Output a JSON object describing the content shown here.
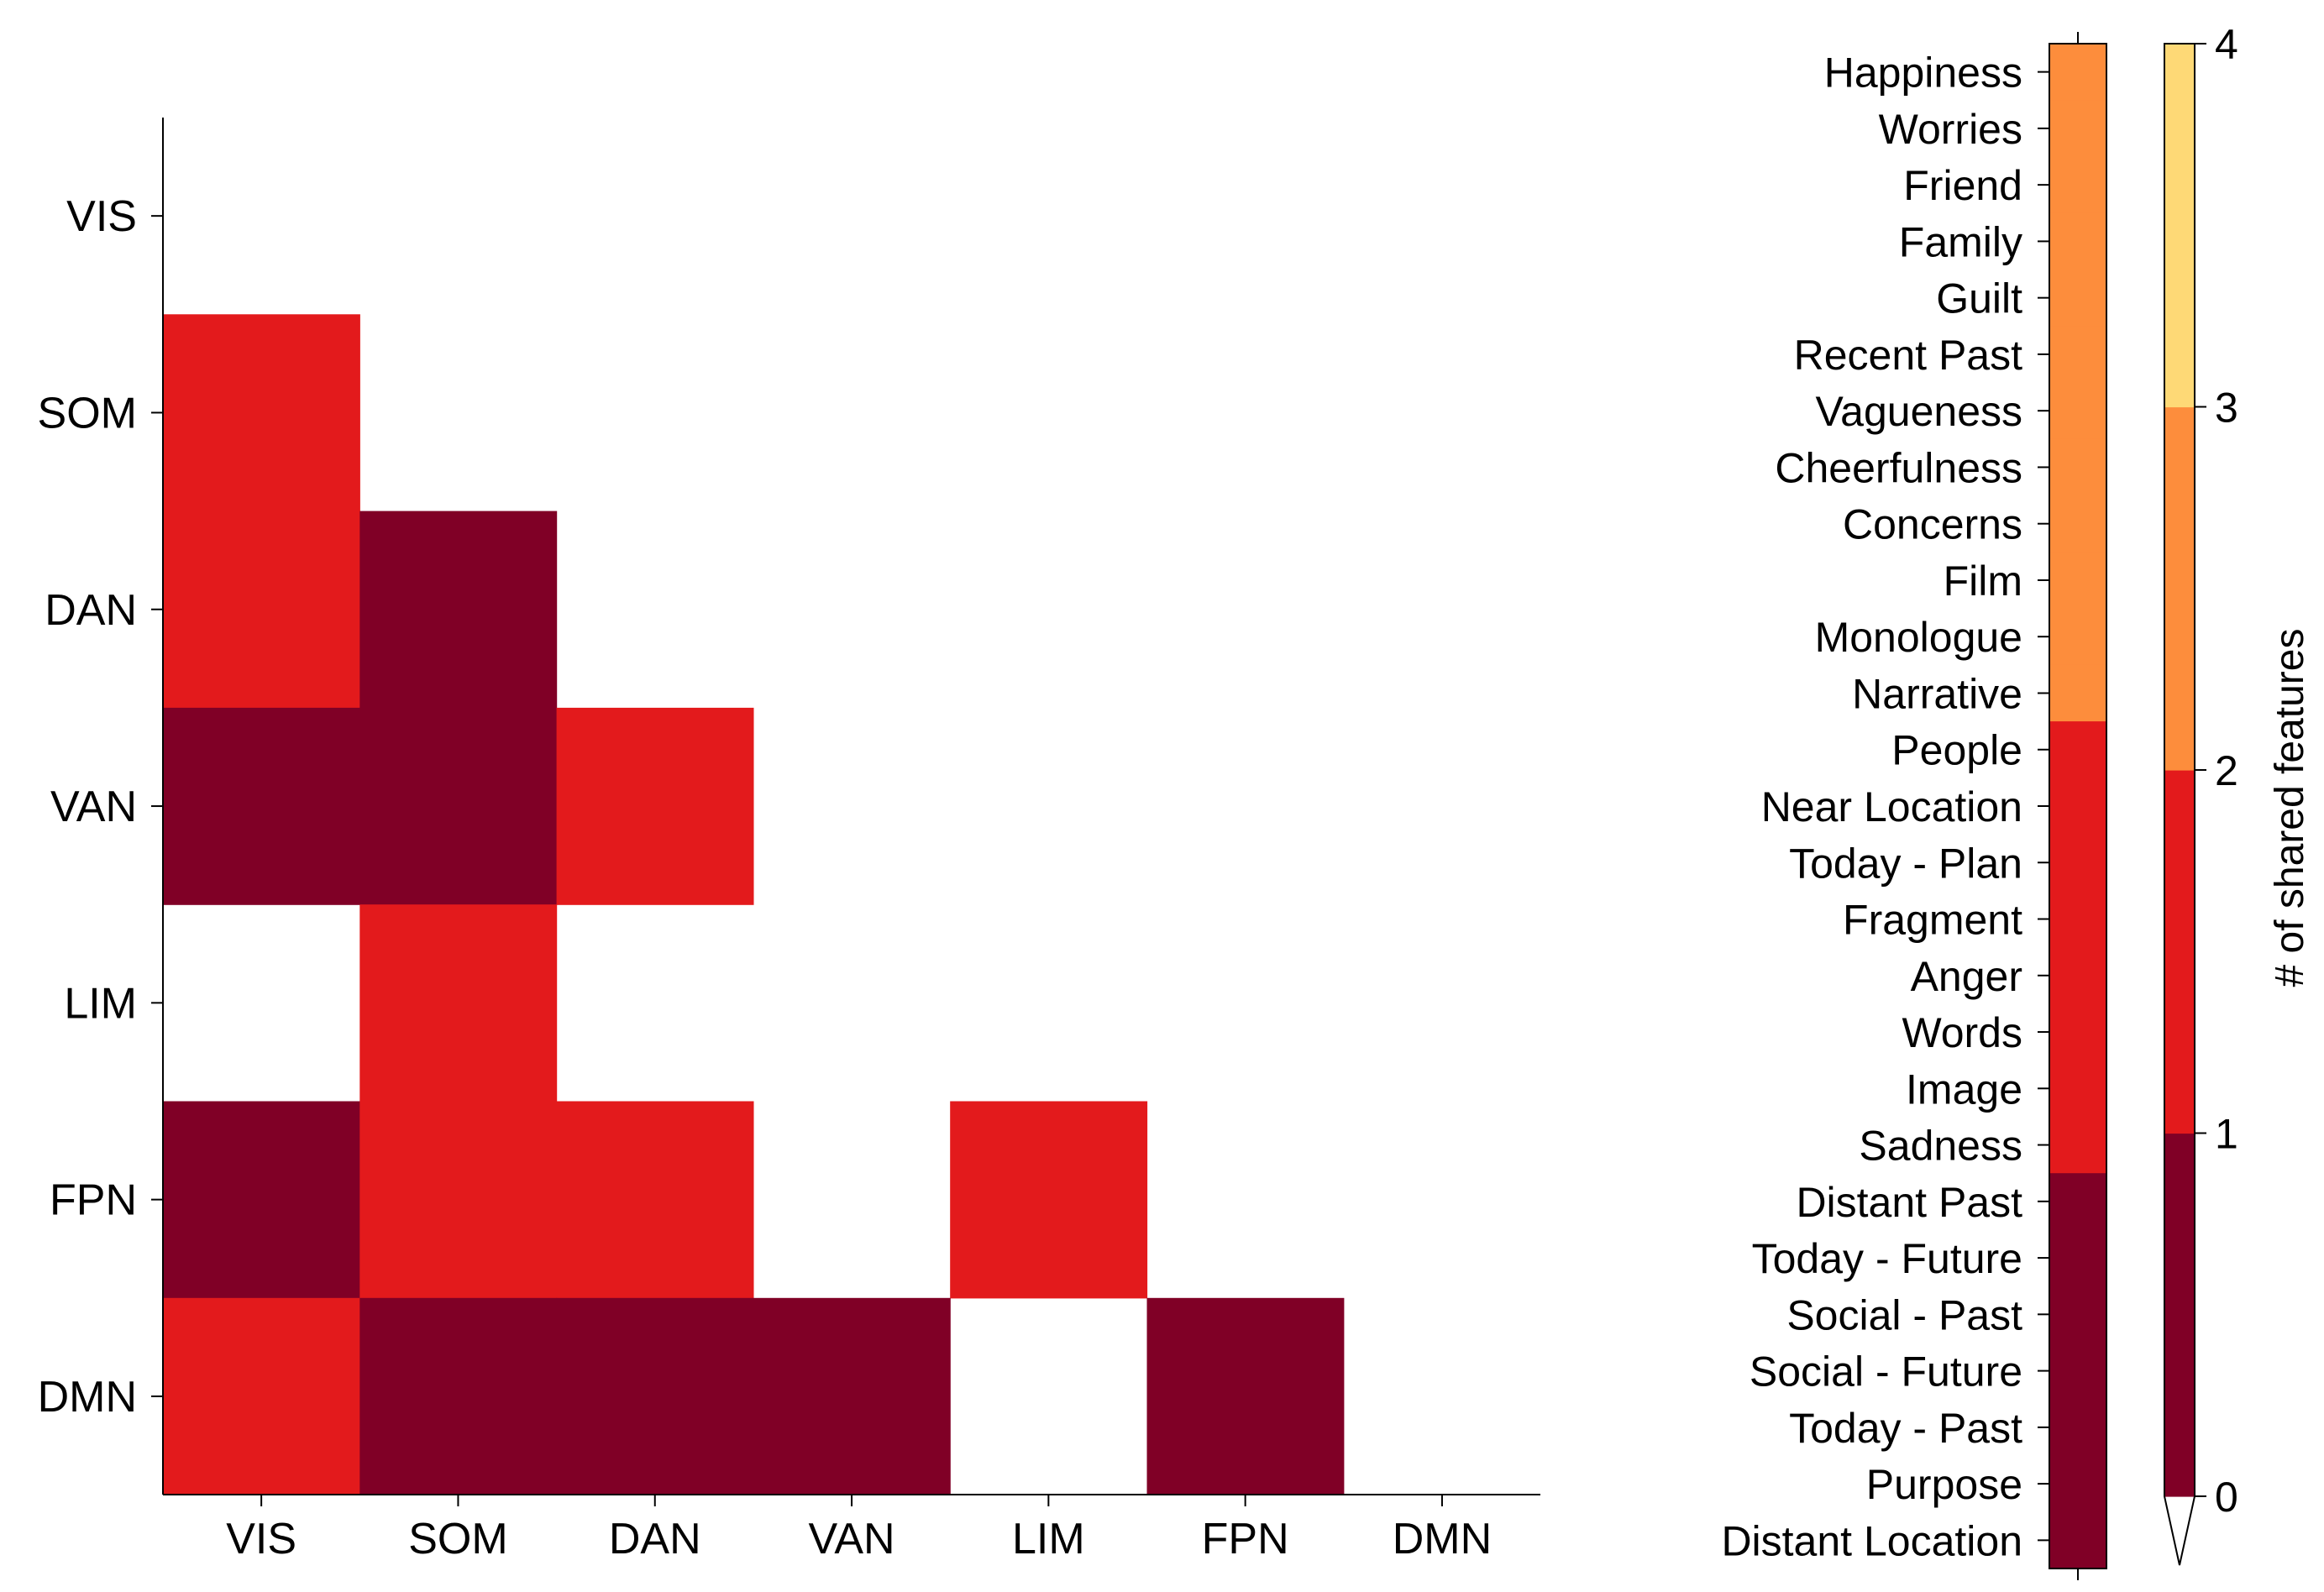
{
  "chart_data": [
    {
      "type": "heatmap",
      "title": "",
      "xlabel": "",
      "ylabel": "",
      "x_categories": [
        "VIS",
        "SOM",
        "DAN",
        "VAN",
        "LIM",
        "FPN",
        "DMN"
      ],
      "y_categories": [
        "VIS",
        "SOM",
        "DAN",
        "VAN",
        "LIM",
        "FPN",
        "DMN"
      ],
      "values": [
        [
          null,
          null,
          null,
          null,
          null,
          null,
          null
        ],
        [
          1,
          null,
          null,
          null,
          null,
          null,
          null
        ],
        [
          1,
          0,
          null,
          null,
          null,
          null,
          null
        ],
        [
          0,
          0,
          1,
          null,
          null,
          null,
          null
        ],
        [
          null,
          1,
          null,
          null,
          null,
          null,
          null
        ],
        [
          0,
          1,
          1,
          null,
          1,
          null,
          null
        ],
        [
          1,
          0,
          0,
          0,
          null,
          0,
          null
        ]
      ],
      "grid": false
    },
    {
      "type": "heatmap",
      "title": "",
      "y_categories": [
        "Happiness",
        "Worries",
        "Friend",
        "Family",
        "Guilt",
        "Recent Past",
        "Vagueness",
        "Cheerfulness",
        "Concerns",
        "Film",
        "Monologue",
        "Narrative",
        "People",
        "Near Location",
        "Today - Plan",
        "Fragment",
        "Anger",
        "Words",
        "Image",
        "Sadness",
        "Distant Past",
        "Today - Future",
        "Social - Past",
        "Social - Future",
        "Today - Past",
        "Purpose",
        "Distant Location"
      ],
      "values": [
        2,
        2,
        2,
        2,
        2,
        2,
        2,
        2,
        2,
        2,
        2,
        2,
        1,
        1,
        1,
        1,
        1,
        1,
        1,
        1,
        0,
        0,
        0,
        0,
        0,
        0,
        0
      ],
      "grid": false
    }
  ],
  "colorbar": {
    "label": "# of shared features",
    "ticks": [
      "0",
      "1",
      "2",
      "3",
      "4"
    ],
    "range": [
      0,
      4
    ],
    "extend": "min",
    "levels": [
      {
        "from": 0,
        "to": 1,
        "color": "#800026"
      },
      {
        "from": 1,
        "to": 2,
        "color": "#e31a1c"
      },
      {
        "from": 2,
        "to": 3,
        "color": "#fd8d3c"
      },
      {
        "from": 3,
        "to": 4,
        "color": "#fed976"
      }
    ]
  }
}
